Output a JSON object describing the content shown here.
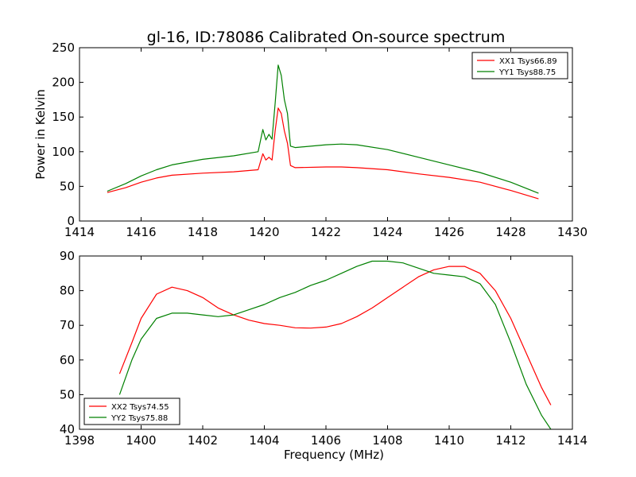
{
  "title": "gl-16, ID:78086 Calibrated On-source spectrum",
  "chart_data": [
    {
      "type": "line",
      "title": "gl-16, ID:78086 Calibrated On-source spectrum",
      "xlabel": "",
      "ylabel": "Power in Kelvin",
      "xlim": [
        1414,
        1430
      ],
      "ylim": [
        0,
        250
      ],
      "xticks": [
        1414,
        1416,
        1418,
        1420,
        1422,
        1424,
        1426,
        1428,
        1430
      ],
      "yticks": [
        0,
        50,
        100,
        150,
        200,
        250
      ],
      "grid": false,
      "legend_position": "top-right",
      "series": [
        {
          "name": "XX1 Tsys66.89",
          "color": "#ff0000",
          "x": [
            1414.9,
            1415.5,
            1416.0,
            1416.5,
            1417.0,
            1418.0,
            1419.0,
            1419.8,
            1419.95,
            1420.05,
            1420.15,
            1420.25,
            1420.35,
            1420.45,
            1420.55,
            1420.65,
            1420.75,
            1420.85,
            1421.0,
            1422.0,
            1422.5,
            1423.0,
            1424.0,
            1425.0,
            1426.0,
            1427.0,
            1428.0,
            1428.9
          ],
          "y": [
            41,
            48,
            56,
            62,
            66,
            69,
            71,
            74,
            97,
            88,
            92,
            88,
            130,
            163,
            155,
            130,
            112,
            80,
            77,
            78,
            78,
            77,
            74,
            68,
            63,
            56,
            44,
            32
          ]
        },
        {
          "name": "YY1 Tsys88.75",
          "color": "#008000",
          "x": [
            1414.9,
            1415.5,
            1416.0,
            1416.5,
            1417.0,
            1418.0,
            1419.0,
            1419.8,
            1419.95,
            1420.05,
            1420.15,
            1420.25,
            1420.35,
            1420.45,
            1420.55,
            1420.65,
            1420.75,
            1420.85,
            1421.0,
            1422.0,
            1422.5,
            1423.0,
            1424.0,
            1425.0,
            1426.0,
            1427.0,
            1428.0,
            1428.9
          ],
          "y": [
            43,
            54,
            65,
            74,
            81,
            89,
            94,
            100,
            132,
            117,
            125,
            118,
            170,
            225,
            210,
            175,
            155,
            108,
            106,
            110,
            111,
            110,
            103,
            92,
            81,
            70,
            56,
            40
          ]
        }
      ]
    },
    {
      "type": "line",
      "title": "",
      "xlabel": "Frequency (MHz)",
      "ylabel": "",
      "xlim": [
        1398,
        1414
      ],
      "ylim": [
        40,
        90
      ],
      "xticks": [
        1398,
        1400,
        1402,
        1404,
        1406,
        1408,
        1410,
        1412,
        1414
      ],
      "yticks": [
        40,
        50,
        60,
        70,
        80,
        90
      ],
      "grid": false,
      "legend_position": "bottom-left",
      "series": [
        {
          "name": "XX2 Tsys74.55",
          "color": "#ff0000",
          "x": [
            1399.3,
            1399.7,
            1400.0,
            1400.5,
            1401.0,
            1401.5,
            1402.0,
            1402.5,
            1403.0,
            1403.5,
            1404.0,
            1404.5,
            1405.0,
            1405.5,
            1406.0,
            1406.5,
            1407.0,
            1407.5,
            1408.0,
            1408.5,
            1409.0,
            1409.5,
            1410.0,
            1410.5,
            1411.0,
            1411.5,
            1412.0,
            1412.5,
            1413.0,
            1413.3
          ],
          "y": [
            56,
            65,
            72,
            79,
            81,
            80,
            78,
            75,
            73,
            71.5,
            70.5,
            70,
            69.3,
            69.2,
            69.5,
            70.5,
            72.5,
            75,
            78,
            81,
            84,
            86,
            87,
            87,
            85,
            80,
            72,
            62,
            52,
            47
          ]
        },
        {
          "name": "YY2 Tsys75.88",
          "color": "#008000",
          "x": [
            1399.3,
            1399.7,
            1400.0,
            1400.5,
            1401.0,
            1401.5,
            1402.0,
            1402.5,
            1403.0,
            1403.5,
            1404.0,
            1404.5,
            1405.0,
            1405.5,
            1406.0,
            1406.5,
            1407.0,
            1407.5,
            1408.0,
            1408.5,
            1409.0,
            1409.5,
            1410.0,
            1410.5,
            1411.0,
            1411.5,
            1412.0,
            1412.5,
            1413.0,
            1413.3
          ],
          "y": [
            50,
            60,
            66,
            72,
            73.5,
            73.5,
            73,
            72.5,
            73,
            74.5,
            76,
            78,
            79.5,
            81.5,
            83,
            85,
            87,
            88.5,
            88.5,
            88,
            86.5,
            85,
            84.5,
            84,
            82,
            76,
            65,
            53,
            44,
            40
          ]
        }
      ]
    }
  ]
}
